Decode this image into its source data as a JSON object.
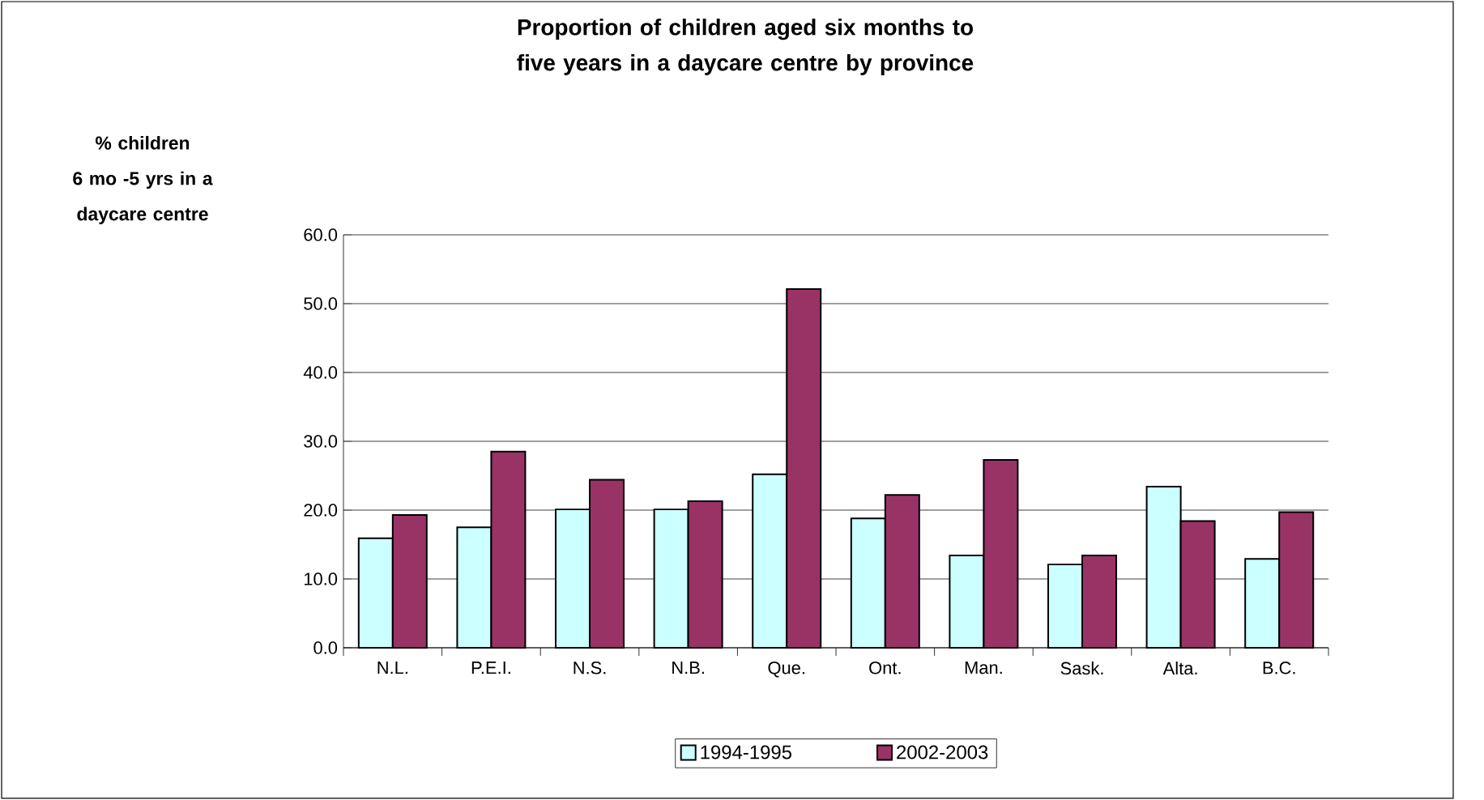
{
  "chart_data": {
    "type": "bar",
    "title": "Proportion of children aged six months to five years in a daycare centre by province",
    "ylabel": "% children 6 mo -5 yrs in a daycare centre",
    "categories": [
      "N.L.",
      "P.E.I.",
      "N.S.",
      "N.B.",
      "Que.",
      "Ont.",
      "Man.",
      "Sask.",
      "Alta.",
      "B.C."
    ],
    "series": [
      {
        "name": "1994-1995",
        "color": "#ccffff",
        "values": [
          15.9,
          17.5,
          20.1,
          20.1,
          25.2,
          18.8,
          13.4,
          12.1,
          23.4,
          12.9
        ]
      },
      {
        "name": "2002-2003",
        "color": "#993366",
        "values": [
          19.3,
          28.5,
          24.4,
          21.3,
          52.1,
          22.2,
          27.3,
          13.4,
          18.4,
          19.7
        ]
      }
    ],
    "ylim": [
      0,
      60
    ],
    "yticks": [
      {
        "value": 0,
        "label": "0.0"
      },
      {
        "value": 10,
        "label": "10.0"
      },
      {
        "value": 20,
        "label": "20.0"
      },
      {
        "value": 30,
        "label": "30.0"
      },
      {
        "value": 40,
        "label": "40.0"
      },
      {
        "value": 50,
        "label": "50.0"
      },
      {
        "value": 60,
        "label": "60.0"
      }
    ],
    "grid": "y",
    "legend": "bottom"
  }
}
